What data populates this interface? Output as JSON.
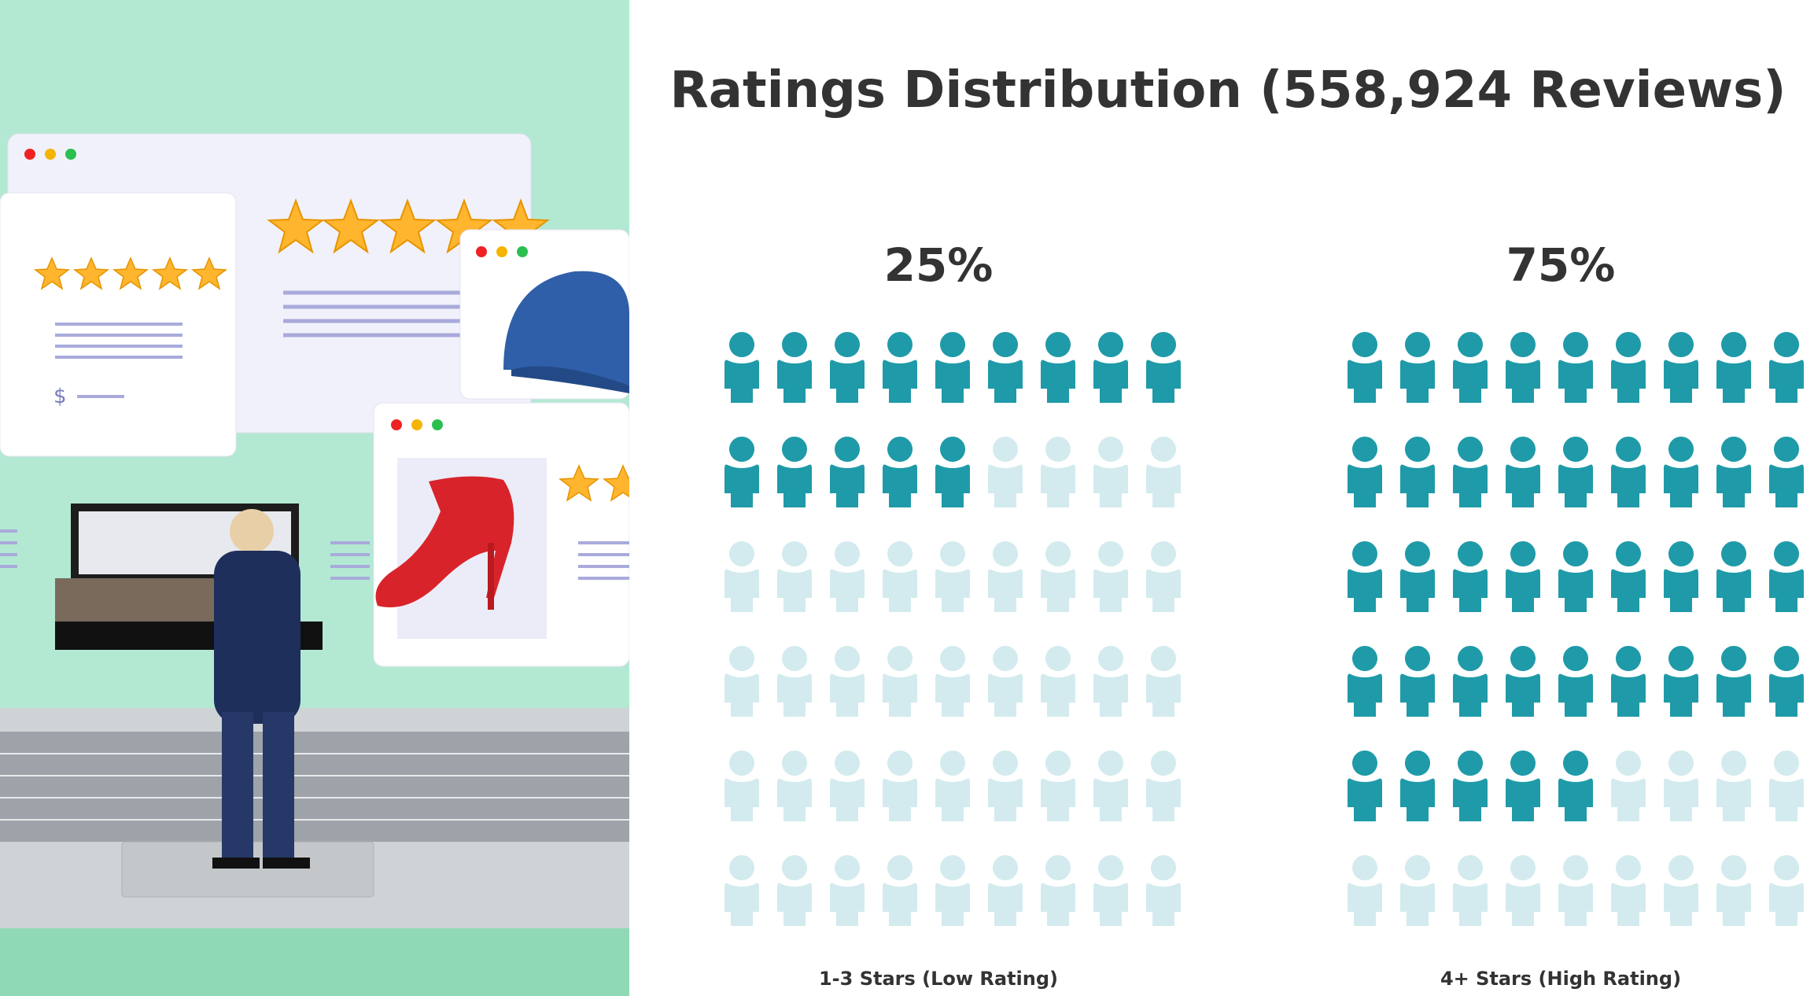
{
  "chart_data": {
    "type": "pictogram",
    "title": "Ratings Distribution (558,924 Reviews)",
    "icons_per_group": 54,
    "groups": [
      {
        "name": "1-3 Stars (Low Rating)",
        "percent_label": "25%",
        "value": 25,
        "filled_icons": 14
      },
      {
        "name": "4+ Stars (High Rating)",
        "percent_label": "75%",
        "value": 75,
        "filled_icons": 41
      }
    ],
    "colors": {
      "filled": "#1f9aa8",
      "empty": "#d3ebee",
      "text": "#333333"
    }
  },
  "illustration": {
    "description_icons": [
      "browser-window-icon",
      "star-icon",
      "cap-icon",
      "high-heel-icon",
      "laptop-icon",
      "man-figure-icon",
      "makeup-palette-icon"
    ],
    "price_symbol": "$",
    "colors": {
      "background": "#b3e9d3",
      "star": "#ffb52e",
      "card": "#f5f5ff"
    }
  }
}
